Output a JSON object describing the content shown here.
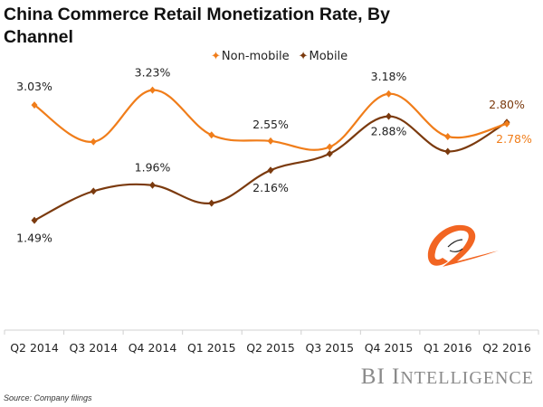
{
  "chart_data": {
    "type": "line",
    "title": "China Commerce Retail Monetization Rate, By Channel",
    "xlabel": "",
    "ylabel": "",
    "categories": [
      "Q2 2014",
      "Q3 2014",
      "Q4 2014",
      "Q1 2015",
      "Q2 2015",
      "Q3 2015",
      "Q4 2015",
      "Q1 2016",
      "Q2 2016"
    ],
    "ylim": [
      0,
      3.5
    ],
    "grid": false,
    "legend_position": "top-center",
    "smooth": true,
    "series": [
      {
        "name": "Non-mobile",
        "color": "#F07D1A",
        "values": [
          3.03,
          2.54,
          3.23,
          2.63,
          2.55,
          2.47,
          3.18,
          2.61,
          2.78
        ],
        "labels": [
          "3.03%",
          null,
          "3.23%",
          null,
          "2.55%",
          null,
          "3.18%",
          null,
          "2.78%"
        ]
      },
      {
        "name": "Mobile",
        "color": "#7B3A0E",
        "values": [
          1.49,
          1.88,
          1.96,
          1.72,
          2.16,
          2.38,
          2.88,
          2.41,
          2.8
        ],
        "labels": [
          "1.49%",
          null,
          "1.96%",
          null,
          "2.16%",
          null,
          "2.88%",
          null,
          "2.80%"
        ]
      }
    ],
    "source": "Source: Company filings"
  },
  "legend": {
    "items": [
      {
        "label": "Non-mobile",
        "marker": "✦"
      },
      {
        "label": "Mobile",
        "marker": "✦"
      }
    ]
  },
  "brand": {
    "first": "BI I",
    "rest": "NTELLIGENCE"
  },
  "source_text": "Source: Company filings",
  "logo": {
    "name": "alibaba-logo",
    "color": "#F26522"
  }
}
